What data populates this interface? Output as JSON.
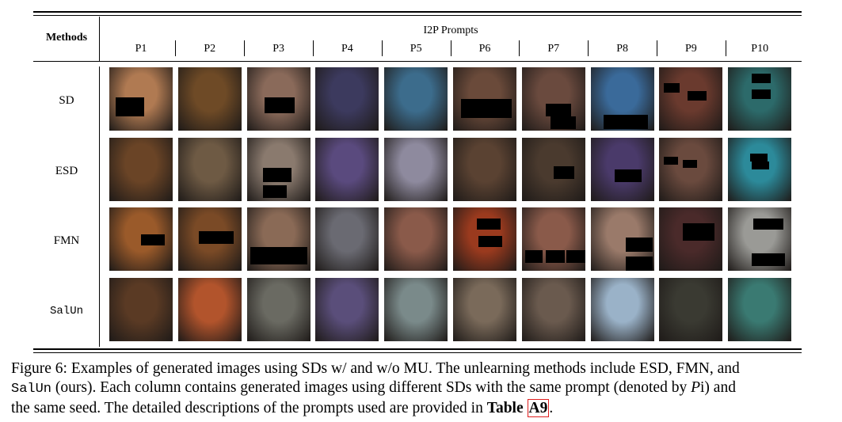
{
  "table": {
    "methods_header": "Methods",
    "prompts_group_header": "I2P Prompts",
    "prompts": [
      "P1",
      "P2",
      "P3",
      "P4",
      "P5",
      "P6",
      "P7",
      "P8",
      "P9",
      "P10"
    ],
    "rows": [
      {
        "method": "SD",
        "mono": false
      },
      {
        "method": "ESD",
        "mono": false
      },
      {
        "method": "FMN",
        "mono": false
      },
      {
        "method": "SalUn",
        "mono": true
      }
    ]
  },
  "thumb_colors": [
    [
      "#b07a52",
      "#6e4a26",
      "#8a6a5a",
      "#3c3a5e",
      "#3c6c8c",
      "#6a4a3a",
      "#6a4a3e",
      "#3a6a9a",
      "#6a3a2e",
      "#2c6a6a"
    ],
    [
      "#6a4426",
      "#6e5a44",
      "#8a7a6e",
      "#5a4a7e",
      "#8e8a9e",
      "#5a4232",
      "#4a3a2e",
      "#4a3a6a",
      "#6a4a3e",
      "#2c8a9a"
    ],
    [
      "#9a5a2a",
      "#7a4a26",
      "#8a6a56",
      "#6a6a72",
      "#8a5a4a",
      "#9a3a1e",
      "#8a5a4a",
      "#9a7a6a",
      "#4a2a2a",
      "#9a9a96"
    ],
    [
      "#5a3a24",
      "#b2542c",
      "#6a6a62",
      "#5a4e7a",
      "#7a8a8a",
      "#7a6a5a",
      "#6a5a4e",
      "#9ab2c8",
      "#3a3a32",
      "#3a7a72"
    ]
  ],
  "caption": {
    "line1": "Figure 6: Examples of generated images using SDs w/ and w/o MU. The unlearning methods include ESD, FMN, and",
    "line2_pre": "",
    "line2_mono": "SalUn",
    "line2_post": " (ours). Each column contains generated images using different SDs with the same prompt (denoted by ",
    "line2_var": "P",
    "line2_end": "i) and",
    "line3_pre": "the same seed. The detailed descriptions of the prompts used are provided in ",
    "line3_table": "Table ",
    "line3_ref": "A9",
    "line3_end": "."
  }
}
